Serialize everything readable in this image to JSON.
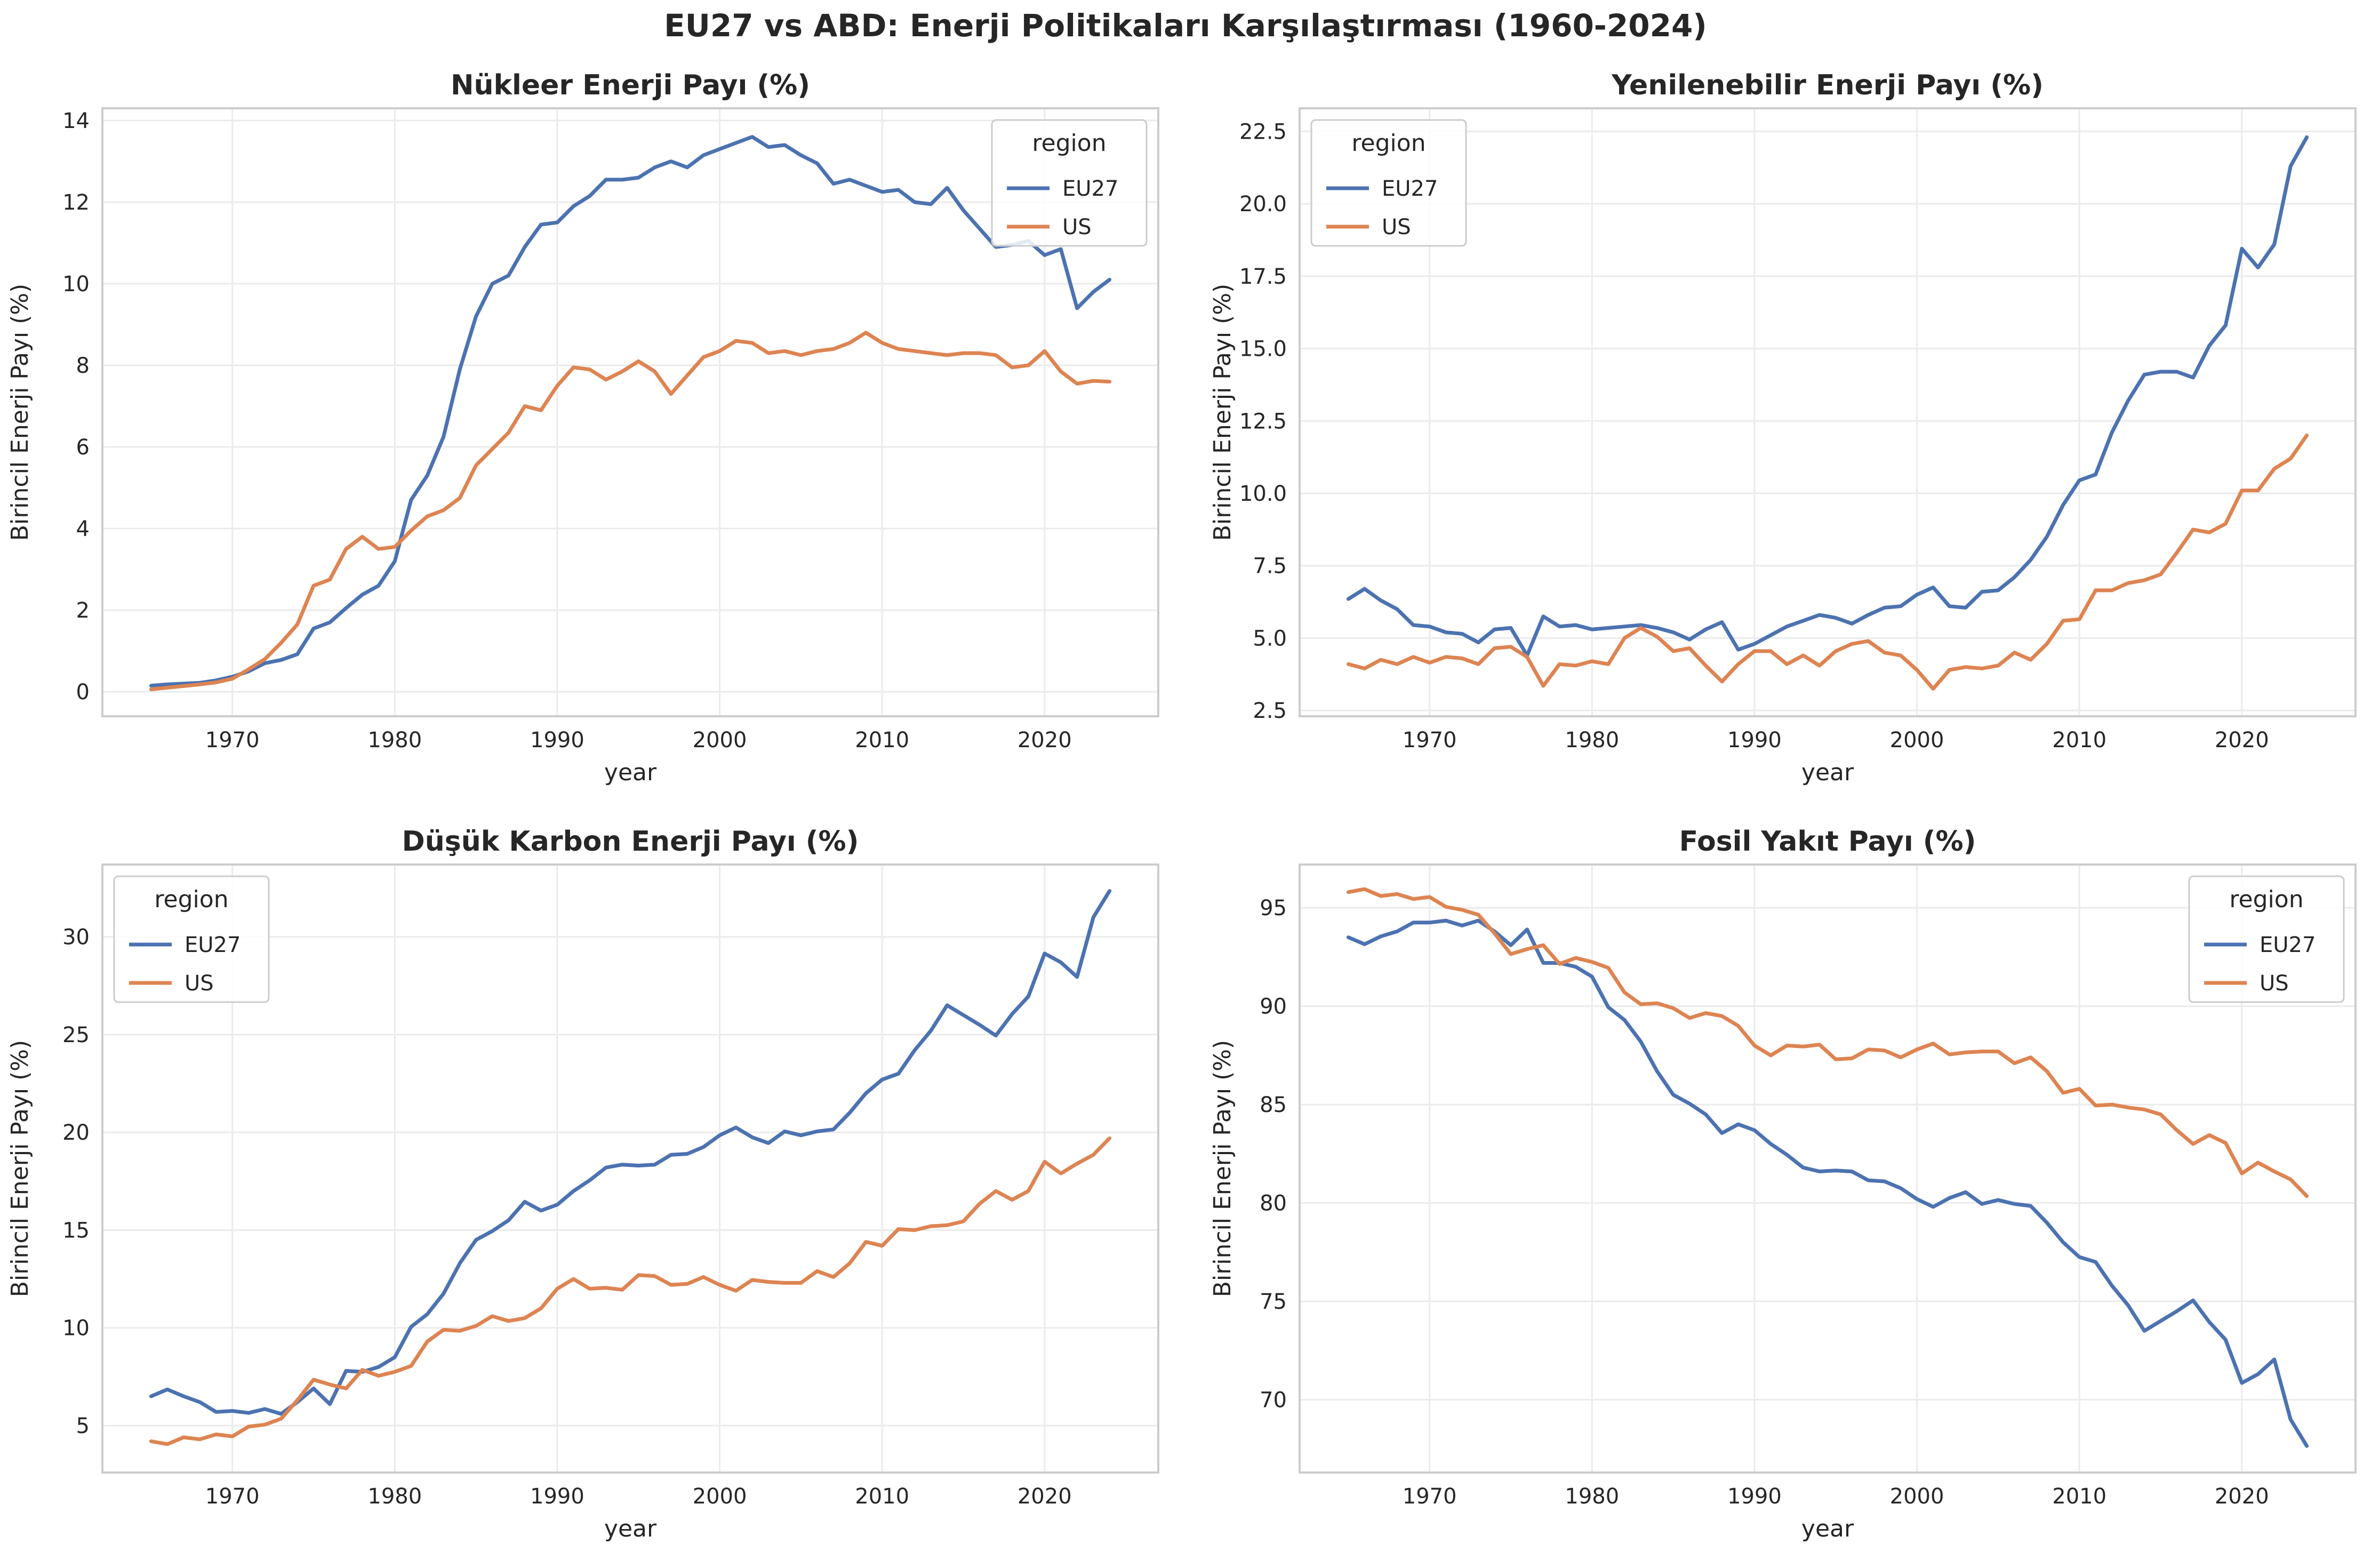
{
  "figure": {
    "title": "EU27 vs ABD: Enerji Politikaları Karşılaştırması (1960-2024)"
  },
  "style": {
    "series_colors": {
      "EU27": "#4c72b0",
      "US": "#dd8452"
    },
    "background": "#ffffff",
    "grid_color": "#ebebeb",
    "spine_color": "#cccccc",
    "text_color": "#262626"
  },
  "chart_data": [
    {
      "type": "line",
      "title": "Nükleer Enerji Payı (%)",
      "xlabel": "year",
      "ylabel": "Birincil Enerji Payı (%)",
      "xlim": [
        1962,
        2027
      ],
      "ylim": [
        -0.6,
        14.3
      ],
      "xticks": [
        1970,
        1980,
        1990,
        2000,
        2010,
        2020
      ],
      "yticks": [
        0,
        2,
        4,
        6,
        8,
        10,
        12,
        14
      ],
      "grid": true,
      "legend": {
        "title": "region",
        "position": "top-right",
        "entries": [
          "EU27",
          "US"
        ]
      },
      "x": [
        1965,
        1966,
        1967,
        1968,
        1969,
        1970,
        1971,
        1972,
        1973,
        1974,
        1975,
        1976,
        1977,
        1978,
        1979,
        1980,
        1981,
        1982,
        1983,
        1984,
        1985,
        1986,
        1987,
        1988,
        1989,
        1990,
        1991,
        1992,
        1993,
        1994,
        1995,
        1996,
        1997,
        1998,
        1999,
        2000,
        2001,
        2002,
        2003,
        2004,
        2005,
        2006,
        2007,
        2008,
        2009,
        2010,
        2011,
        2012,
        2013,
        2014,
        2015,
        2016,
        2017,
        2018,
        2019,
        2020,
        2021,
        2022,
        2023,
        2024
      ],
      "series": [
        {
          "name": "EU27",
          "values": [
            0.15,
            0.18,
            0.2,
            0.22,
            0.28,
            0.37,
            0.5,
            0.7,
            0.78,
            0.92,
            1.55,
            1.7,
            2.05,
            2.38,
            2.6,
            3.2,
            4.7,
            5.3,
            6.25,
            7.9,
            9.2,
            10.0,
            10.2,
            10.9,
            11.45,
            11.5,
            11.9,
            12.15,
            12.55,
            12.55,
            12.6,
            12.85,
            13.0,
            12.85,
            13.15,
            13.3,
            13.45,
            13.6,
            13.35,
            13.4,
            13.15,
            12.95,
            12.45,
            12.55,
            12.4,
            12.25,
            12.3,
            12.0,
            11.95,
            12.35,
            11.8,
            11.35,
            10.9,
            10.95,
            11.05,
            10.7,
            10.85,
            9.4,
            9.8,
            10.1
          ]
        },
        {
          "name": "US",
          "values": [
            0.06,
            0.1,
            0.14,
            0.18,
            0.23,
            0.32,
            0.55,
            0.8,
            1.2,
            1.65,
            2.6,
            2.75,
            3.5,
            3.8,
            3.5,
            3.55,
            3.95,
            4.3,
            4.45,
            4.75,
            5.55,
            5.95,
            6.35,
            7.0,
            6.9,
            7.5,
            7.95,
            7.9,
            7.65,
            7.85,
            8.1,
            7.85,
            7.3,
            7.75,
            8.2,
            8.35,
            8.6,
            8.55,
            8.3,
            8.35,
            8.25,
            8.35,
            8.4,
            8.55,
            8.8,
            8.55,
            8.4,
            8.35,
            8.3,
            8.25,
            8.3,
            8.3,
            8.25,
            7.95,
            8.0,
            8.35,
            7.85,
            7.55,
            7.62,
            7.6
          ]
        }
      ]
    },
    {
      "type": "line",
      "title": "Yenilenebilir Enerji Payı (%)",
      "xlabel": "year",
      "ylabel": "Birincil Enerji Payı (%)",
      "xlim": [
        1962,
        2027
      ],
      "ylim": [
        2.3,
        23.3
      ],
      "xticks": [
        1970,
        1980,
        1990,
        2000,
        2010,
        2020
      ],
      "yticks": [
        2.5,
        5.0,
        7.5,
        10.0,
        12.5,
        15.0,
        17.5,
        20.0,
        22.5
      ],
      "ytick_decimals": 1,
      "grid": true,
      "legend": {
        "title": "region",
        "position": "top-left",
        "entries": [
          "EU27",
          "US"
        ]
      },
      "x": [
        1965,
        1966,
        1967,
        1968,
        1969,
        1970,
        1971,
        1972,
        1973,
        1974,
        1975,
        1976,
        1977,
        1978,
        1979,
        1980,
        1981,
        1982,
        1983,
        1984,
        1985,
        1986,
        1987,
        1988,
        1989,
        1990,
        1991,
        1992,
        1993,
        1994,
        1995,
        1996,
        1997,
        1998,
        1999,
        2000,
        2001,
        2002,
        2003,
        2004,
        2005,
        2006,
        2007,
        2008,
        2009,
        2010,
        2011,
        2012,
        2013,
        2014,
        2015,
        2016,
        2017,
        2018,
        2019,
        2020,
        2021,
        2022,
        2023,
        2024
      ],
      "series": [
        {
          "name": "EU27",
          "values": [
            6.35,
            6.7,
            6.3,
            6.0,
            5.45,
            5.4,
            5.2,
            5.15,
            4.85,
            5.3,
            5.35,
            4.4,
            5.75,
            5.4,
            5.45,
            5.3,
            5.35,
            5.4,
            5.45,
            5.35,
            5.2,
            4.95,
            5.3,
            5.55,
            4.6,
            4.8,
            5.1,
            5.4,
            5.6,
            5.8,
            5.7,
            5.5,
            5.8,
            6.05,
            6.1,
            6.5,
            6.75,
            6.1,
            6.05,
            6.6,
            6.65,
            7.1,
            7.7,
            8.5,
            9.6,
            10.45,
            10.65,
            12.1,
            13.2,
            14.1,
            14.2,
            14.2,
            14.0,
            15.1,
            15.8,
            18.45,
            17.8,
            18.6,
            21.3,
            22.3
          ]
        },
        {
          "name": "US",
          "values": [
            4.1,
            3.95,
            4.25,
            4.1,
            4.35,
            4.15,
            4.35,
            4.3,
            4.1,
            4.65,
            4.7,
            4.35,
            3.35,
            4.1,
            4.05,
            4.2,
            4.1,
            5.0,
            5.35,
            5.05,
            4.55,
            4.65,
            4.05,
            3.5,
            4.1,
            4.55,
            4.55,
            4.1,
            4.4,
            4.05,
            4.55,
            4.8,
            4.9,
            4.5,
            4.4,
            3.9,
            3.25,
            3.9,
            4.0,
            3.95,
            4.05,
            4.5,
            4.25,
            4.8,
            5.6,
            5.65,
            6.65,
            6.65,
            6.9,
            7.0,
            7.2,
            7.95,
            8.75,
            8.65,
            8.95,
            10.1,
            10.1,
            10.85,
            11.2,
            12.0
          ]
        }
      ]
    },
    {
      "type": "line",
      "title": "Düşük Karbon Enerji Payı (%)",
      "xlabel": "year",
      "ylabel": "Birincil Enerji Payı (%)",
      "xlim": [
        1962,
        2027
      ],
      "ylim": [
        2.6,
        33.7
      ],
      "xticks": [
        1970,
        1980,
        1990,
        2000,
        2010,
        2020
      ],
      "yticks": [
        5,
        10,
        15,
        20,
        25,
        30
      ],
      "grid": true,
      "legend": {
        "title": "region",
        "position": "top-left",
        "entries": [
          "EU27",
          "US"
        ]
      },
      "x": [
        1965,
        1966,
        1967,
        1968,
        1969,
        1970,
        1971,
        1972,
        1973,
        1974,
        1975,
        1976,
        1977,
        1978,
        1979,
        1980,
        1981,
        1982,
        1983,
        1984,
        1985,
        1986,
        1987,
        1988,
        1989,
        1990,
        1991,
        1992,
        1993,
        1994,
        1995,
        1996,
        1997,
        1998,
        1999,
        2000,
        2001,
        2002,
        2003,
        2004,
        2005,
        2006,
        2007,
        2008,
        2009,
        2010,
        2011,
        2012,
        2013,
        2014,
        2015,
        2016,
        2017,
        2018,
        2019,
        2020,
        2021,
        2022,
        2023,
        2024
      ],
      "series": [
        {
          "name": "EU27",
          "values": [
            6.5,
            6.85,
            6.5,
            6.2,
            5.7,
            5.75,
            5.65,
            5.85,
            5.6,
            6.2,
            6.9,
            6.1,
            7.8,
            7.75,
            8.0,
            8.5,
            10.05,
            10.7,
            11.75,
            13.3,
            14.5,
            14.95,
            15.5,
            16.45,
            16.0,
            16.3,
            17.0,
            17.55,
            18.2,
            18.35,
            18.3,
            18.35,
            18.85,
            18.9,
            19.25,
            19.85,
            20.25,
            19.75,
            19.45,
            20.05,
            19.85,
            20.05,
            20.15,
            21.0,
            22.0,
            22.7,
            23.0,
            24.2,
            25.2,
            26.5,
            26.0,
            25.5,
            24.95,
            26.05,
            26.95,
            29.15,
            28.7,
            27.95,
            31.0,
            32.35
          ]
        },
        {
          "name": "US",
          "values": [
            4.2,
            4.05,
            4.4,
            4.3,
            4.55,
            4.45,
            4.95,
            5.05,
            5.35,
            6.3,
            7.35,
            7.1,
            6.9,
            7.85,
            7.55,
            7.75,
            8.05,
            9.3,
            9.9,
            9.85,
            10.1,
            10.6,
            10.35,
            10.5,
            11.0,
            12.0,
            12.5,
            12.0,
            12.05,
            11.95,
            12.7,
            12.65,
            12.2,
            12.25,
            12.6,
            12.2,
            11.9,
            12.45,
            12.35,
            12.3,
            12.3,
            12.9,
            12.6,
            13.3,
            14.4,
            14.2,
            15.05,
            15.0,
            15.2,
            15.25,
            15.45,
            16.35,
            17.0,
            16.55,
            17.0,
            18.5,
            17.9,
            18.4,
            18.85,
            19.7
          ]
        }
      ]
    },
    {
      "type": "line",
      "title": "Fosil Yakıt Payı (%)",
      "xlabel": "year",
      "ylabel": "Birincil Enerji Payı (%)",
      "xlim": [
        1962,
        2027
      ],
      "ylim": [
        66.3,
        97.2
      ],
      "xticks": [
        1970,
        1980,
        1990,
        2000,
        2010,
        2020
      ],
      "yticks": [
        70,
        75,
        80,
        85,
        90,
        95
      ],
      "grid": true,
      "legend": {
        "title": "region",
        "position": "top-right",
        "entries": [
          "EU27",
          "US"
        ]
      },
      "x": [
        1965,
        1966,
        1967,
        1968,
        1969,
        1970,
        1971,
        1972,
        1973,
        1974,
        1975,
        1976,
        1977,
        1978,
        1979,
        1980,
        1981,
        1982,
        1983,
        1984,
        1985,
        1986,
        1987,
        1988,
        1989,
        1990,
        1991,
        1992,
        1993,
        1994,
        1995,
        1996,
        1997,
        1998,
        1999,
        2000,
        2001,
        2002,
        2003,
        2004,
        2005,
        2006,
        2007,
        2008,
        2009,
        2010,
        2011,
        2012,
        2013,
        2014,
        2015,
        2016,
        2017,
        2018,
        2019,
        2020,
        2021,
        2022,
        2023,
        2024
      ],
      "series": [
        {
          "name": "EU27",
          "values": [
            93.5,
            93.15,
            93.55,
            93.8,
            94.25,
            94.25,
            94.35,
            94.1,
            94.35,
            93.8,
            93.1,
            93.9,
            92.2,
            92.2,
            92.0,
            91.5,
            89.95,
            89.3,
            88.2,
            86.7,
            85.5,
            85.05,
            84.5,
            83.55,
            84.0,
            83.7,
            83.0,
            82.45,
            81.8,
            81.6,
            81.65,
            81.6,
            81.15,
            81.1,
            80.75,
            80.2,
            79.8,
            80.25,
            80.55,
            79.95,
            80.15,
            79.95,
            79.85,
            79.0,
            78.0,
            77.25,
            77.0,
            75.8,
            74.8,
            73.5,
            74.0,
            74.5,
            75.05,
            73.95,
            73.05,
            70.85,
            71.3,
            72.05,
            69.0,
            67.65
          ]
        },
        {
          "name": "US",
          "values": [
            95.8,
            95.95,
            95.6,
            95.7,
            95.45,
            95.55,
            95.05,
            94.9,
            94.65,
            93.7,
            92.65,
            92.9,
            93.1,
            92.15,
            92.45,
            92.25,
            91.95,
            90.7,
            90.1,
            90.15,
            89.9,
            89.4,
            89.65,
            89.5,
            89.0,
            88.0,
            87.5,
            88.0,
            87.95,
            88.05,
            87.3,
            87.35,
            87.8,
            87.75,
            87.4,
            87.8,
            88.1,
            87.55,
            87.65,
            87.7,
            87.7,
            87.1,
            87.4,
            86.7,
            85.6,
            85.8,
            84.95,
            85.0,
            84.85,
            84.75,
            84.5,
            83.7,
            83.0,
            83.45,
            83.05,
            81.5,
            82.05,
            81.6,
            81.2,
            80.35
          ]
        }
      ]
    }
  ]
}
